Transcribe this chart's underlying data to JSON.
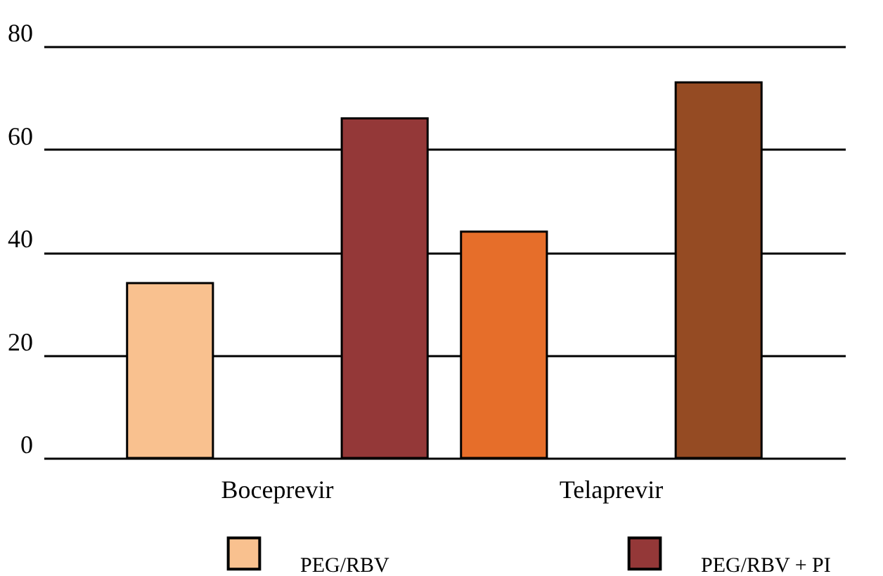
{
  "chart_data": {
    "type": "bar",
    "categories": [
      "Boceprevir",
      "Telaprevir"
    ],
    "series": [
      {
        "name": "PEG/RBV",
        "colors": [
          "#f9c18f",
          "#e66e2a"
        ],
        "values": [
          34,
          44
        ]
      },
      {
        "name": "PEG/RBV + PI",
        "colors": [
          "#943838",
          "#954b23"
        ],
        "values": [
          66,
          73
        ]
      }
    ],
    "ylim": [
      0,
      80
    ],
    "yticks": [
      0,
      20,
      40,
      60,
      80
    ],
    "grid": "y",
    "legend": "bottom"
  }
}
